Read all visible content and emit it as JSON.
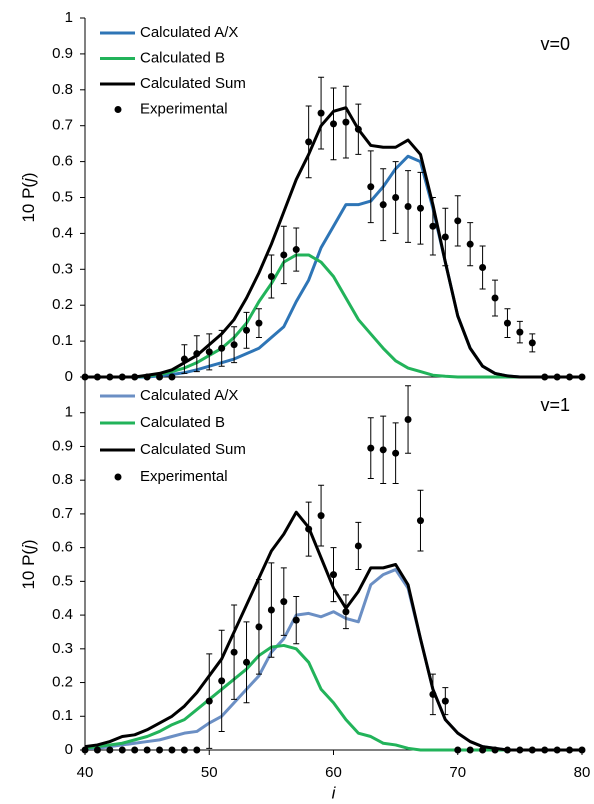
{
  "chart_data": [
    {
      "type": "line",
      "annotation": "v=0",
      "ylabel": [
        "10 P(",
        "j",
        ")"
      ],
      "xlim": [
        40,
        80
      ],
      "ylim": [
        0,
        1
      ],
      "yticks": [
        0,
        0.1,
        0.2,
        0.3,
        0.4,
        0.5,
        0.6,
        0.7,
        0.8,
        0.9,
        1
      ],
      "x": [
        40,
        41,
        42,
        43,
        44,
        45,
        46,
        47,
        48,
        49,
        50,
        51,
        52,
        53,
        54,
        55,
        56,
        57,
        58,
        59,
        60,
        61,
        62,
        63,
        64,
        65,
        66,
        67,
        68,
        69,
        70,
        71,
        72,
        73,
        74,
        75,
        76,
        77,
        78,
        79,
        80
      ],
      "series": [
        {
          "name": "Calculated A/X",
          "color": "#2e75b6",
          "mode": "line",
          "values": [
            0,
            0,
            0,
            0,
            0,
            0,
            0.003,
            0.007,
            0.012,
            0.02,
            0.03,
            0.04,
            0.05,
            0.065,
            0.08,
            0.11,
            0.14,
            0.21,
            0.27,
            0.36,
            0.42,
            0.48,
            0.48,
            0.49,
            0.53,
            0.58,
            0.615,
            0.6,
            0.47,
            0.32,
            0.17,
            0.08,
            0.03,
            0.01,
            0.003,
            0,
            0,
            0,
            0,
            0,
            0
          ]
        },
        {
          "name": "Calculated B",
          "color": "#22b35a",
          "mode": "line",
          "values": [
            0,
            0,
            0,
            0,
            0,
            0.003,
            0.007,
            0.015,
            0.025,
            0.04,
            0.06,
            0.08,
            0.11,
            0.15,
            0.21,
            0.26,
            0.32,
            0.34,
            0.34,
            0.32,
            0.28,
            0.22,
            0.16,
            0.12,
            0.08,
            0.045,
            0.025,
            0.015,
            0.005,
            0.002,
            0,
            0,
            0,
            0,
            0,
            0,
            0,
            0,
            0,
            0,
            0
          ]
        },
        {
          "name": "Calculated Sum",
          "color": "#000000",
          "mode": "line",
          "values": [
            0,
            0,
            0,
            0,
            0,
            0.005,
            0.01,
            0.02,
            0.04,
            0.06,
            0.09,
            0.12,
            0.16,
            0.22,
            0.29,
            0.37,
            0.46,
            0.55,
            0.62,
            0.7,
            0.74,
            0.75,
            0.69,
            0.645,
            0.64,
            0.64,
            0.66,
            0.62,
            0.48,
            0.32,
            0.17,
            0.08,
            0.03,
            0.01,
            0.003,
            0,
            0,
            0,
            0,
            0,
            0
          ]
        },
        {
          "name": "Experimental",
          "color": "#000000",
          "mode": "markers",
          "values": [
            0,
            0,
            0,
            0,
            0,
            0,
            0,
            0,
            0.05,
            0.065,
            0.07,
            0.08,
            0.09,
            0.13,
            0.15,
            0.28,
            0.34,
            0.355,
            0.655,
            0.735,
            0.705,
            0.71,
            0.69,
            0.53,
            0.48,
            0.5,
            0.475,
            0.47,
            0.42,
            0.39,
            0.435,
            0.37,
            0.305,
            0.22,
            0.15,
            0.125,
            0.095,
            0,
            0,
            0,
            0
          ],
          "errors": [
            0,
            0,
            0,
            0,
            0,
            0,
            0,
            0,
            0.04,
            0.05,
            0.05,
            0.05,
            0.05,
            0.05,
            0.04,
            0.06,
            0.08,
            0.06,
            0.1,
            0.1,
            0.1,
            0.1,
            0.07,
            0.1,
            0.1,
            0.1,
            0.1,
            0.1,
            0.08,
            0.08,
            0.07,
            0.06,
            0.06,
            0.05,
            0.04,
            0.03,
            0.025,
            0,
            0,
            0,
            0
          ]
        }
      ]
    },
    {
      "type": "line",
      "annotation": "v=1",
      "ylabel": [
        "10 P(",
        "j",
        ")"
      ],
      "xlabel": "i",
      "xlim": [
        40,
        80
      ],
      "xticks": [
        40,
        50,
        60,
        70,
        80
      ],
      "ylim": [
        0,
        1.1
      ],
      "yticks": [
        0,
        0.1,
        0.2,
        0.3,
        0.4,
        0.5,
        0.6,
        0.7,
        0.8,
        0.9,
        1
      ],
      "x": [
        40,
        41,
        42,
        43,
        44,
        45,
        46,
        47,
        48,
        49,
        50,
        51,
        52,
        53,
        54,
        55,
        56,
        57,
        58,
        59,
        60,
        61,
        62,
        63,
        64,
        65,
        66,
        67,
        68,
        69,
        70,
        71,
        72,
        73,
        74,
        75,
        76,
        77,
        78,
        79,
        80
      ],
      "series": [
        {
          "name": "Calculated A/X",
          "color": "#6b8fc4",
          "mode": "line",
          "values": [
            0.005,
            0.005,
            0.01,
            0.015,
            0.02,
            0.025,
            0.03,
            0.04,
            0.05,
            0.055,
            0.08,
            0.1,
            0.14,
            0.18,
            0.22,
            0.29,
            0.33,
            0.4,
            0.405,
            0.395,
            0.41,
            0.39,
            0.38,
            0.49,
            0.52,
            0.535,
            0.48,
            0.33,
            0.18,
            0.09,
            0.05,
            0.025,
            0.01,
            0.005,
            0,
            0,
            0,
            0,
            0,
            0,
            0
          ]
        },
        {
          "name": "Calculated B",
          "color": "#22b35a",
          "mode": "line",
          "values": [
            0.005,
            0.01,
            0.015,
            0.02,
            0.03,
            0.04,
            0.055,
            0.075,
            0.09,
            0.12,
            0.15,
            0.18,
            0.21,
            0.24,
            0.28,
            0.305,
            0.31,
            0.3,
            0.26,
            0.18,
            0.14,
            0.09,
            0.05,
            0.04,
            0.02,
            0.015,
            0.005,
            0,
            0,
            0,
            0,
            0,
            0,
            0,
            0,
            0,
            0,
            0,
            0,
            0,
            0
          ]
        },
        {
          "name": "Calculated Sum",
          "color": "#000000",
          "mode": "line",
          "values": [
            0.01,
            0.015,
            0.025,
            0.04,
            0.045,
            0.06,
            0.08,
            0.1,
            0.13,
            0.17,
            0.22,
            0.27,
            0.35,
            0.43,
            0.51,
            0.59,
            0.64,
            0.705,
            0.66,
            0.57,
            0.48,
            0.42,
            0.47,
            0.54,
            0.54,
            0.55,
            0.49,
            0.33,
            0.18,
            0.09,
            0.05,
            0.025,
            0.01,
            0.005,
            0,
            0,
            0,
            0,
            0,
            0,
            0
          ]
        },
        {
          "name": "Experimental",
          "color": "#000000",
          "mode": "markers",
          "values": [
            0,
            0,
            0,
            0,
            0,
            0,
            0,
            0,
            0,
            0,
            0.145,
            0.205,
            0.29,
            0.26,
            0.365,
            0.415,
            0.44,
            0.385,
            0.655,
            0.695,
            0.52,
            0.41,
            0.605,
            0.895,
            0.89,
            0.88,
            0.98,
            0.68,
            0.165,
            0.145,
            0,
            0,
            0,
            0,
            0,
            0,
            0,
            0,
            0,
            0,
            0
          ],
          "errors": [
            0,
            0,
            0,
            0,
            0,
            0,
            0,
            0,
            0,
            0,
            0.14,
            0.15,
            0.14,
            0.12,
            0.14,
            0.14,
            0.1,
            0.07,
            0.08,
            0.09,
            0.08,
            0.05,
            0.07,
            0.09,
            0.1,
            0.09,
            0.1,
            0.09,
            0.06,
            0.04,
            0,
            0,
            0,
            0,
            0,
            0,
            0,
            0,
            0,
            0,
            0
          ]
        }
      ]
    }
  ]
}
